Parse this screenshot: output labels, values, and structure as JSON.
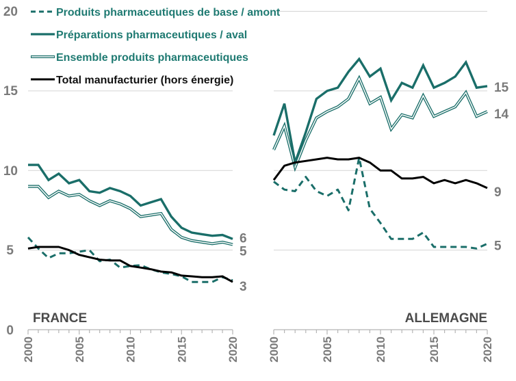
{
  "chart_data": [
    {
      "type": "line",
      "panel": "FRANCE",
      "title": "FRANCE",
      "xlabel": "",
      "ylabel": "",
      "x": [
        2000,
        2001,
        2002,
        2003,
        2004,
        2005,
        2006,
        2007,
        2008,
        2009,
        2010,
        2011,
        2012,
        2013,
        2014,
        2015,
        2016,
        2017,
        2018,
        2019,
        2020
      ],
      "xlim": [
        2000,
        2020
      ],
      "ylim": [
        0,
        20
      ],
      "yticks": [
        "0",
        "5",
        "10",
        "15",
        "20"
      ],
      "xticks": [
        "2000",
        "2005",
        "2010",
        "2015",
        "2020"
      ],
      "grid": true,
      "series": [
        {
          "key": "base",
          "name": "Produits pharmaceutiques de base / amont",
          "values": [
            5.8,
            5.1,
            4.5,
            4.8,
            4.8,
            4.9,
            5.0,
            4.3,
            4.4,
            3.9,
            4.0,
            4.05,
            3.8,
            3.6,
            3.5,
            3.35,
            3.0,
            3.0,
            3.0,
            3.3,
            3.1
          ]
        },
        {
          "key": "aval",
          "name": "Préparations pharmaceutiques / aval",
          "values": [
            10.35,
            10.35,
            9.4,
            9.8,
            9.2,
            9.4,
            8.7,
            8.6,
            8.9,
            8.7,
            8.4,
            7.8,
            8.0,
            8.2,
            7.1,
            6.4,
            6.1,
            6.0,
            5.9,
            5.95,
            5.7
          ]
        },
        {
          "key": "ensemble",
          "name": "Ensemble produits pharmaceutiques",
          "values": [
            9.0,
            9.0,
            8.3,
            8.7,
            8.4,
            8.5,
            8.1,
            7.8,
            8.1,
            7.9,
            7.6,
            7.1,
            7.2,
            7.3,
            6.3,
            5.8,
            5.6,
            5.5,
            5.4,
            5.5,
            5.35
          ]
        },
        {
          "key": "total",
          "name": "Total manufacturier (hors énergie)",
          "values": [
            5.1,
            5.2,
            5.2,
            5.2,
            5.0,
            4.7,
            4.55,
            4.4,
            4.35,
            4.35,
            4.0,
            3.9,
            3.8,
            3.65,
            3.6,
            3.4,
            3.35,
            3.3,
            3.3,
            3.35,
            3.0
          ]
        }
      ],
      "end_labels": [
        {
          "series": "aval",
          "text": "6"
        },
        {
          "series": "ensemble",
          "text": "5"
        },
        {
          "series": "total",
          "text": "3"
        }
      ]
    },
    {
      "type": "line",
      "panel": "ALLEMAGNE",
      "title": "ALLEMAGNE",
      "xlabel": "",
      "ylabel": "",
      "x": [
        2000,
        2001,
        2002,
        2003,
        2004,
        2005,
        2006,
        2007,
        2008,
        2009,
        2010,
        2011,
        2012,
        2013,
        2014,
        2015,
        2016,
        2017,
        2018,
        2019,
        2020
      ],
      "xlim": [
        2000,
        2020
      ],
      "ylim": [
        0,
        20
      ],
      "xticks": [
        "2000",
        "2005",
        "2010",
        "2015",
        "2020"
      ],
      "grid": true,
      "series": [
        {
          "key": "base",
          "name": "Produits pharmaceutiques de base / amont",
          "values": [
            9.3,
            8.8,
            8.7,
            9.6,
            8.7,
            8.4,
            8.8,
            7.5,
            10.8,
            7.6,
            6.7,
            5.7,
            5.7,
            5.7,
            6.1,
            5.2,
            5.2,
            5.2,
            5.2,
            5.1,
            5.4
          ]
        },
        {
          "key": "aval",
          "name": "Préparations pharmaceutiques / aval",
          "values": [
            12.2,
            14.2,
            10.5,
            12.4,
            14.5,
            15.0,
            15.2,
            16.2,
            17.0,
            15.9,
            16.4,
            14.4,
            15.5,
            15.2,
            16.6,
            15.2,
            15.5,
            15.9,
            16.8,
            15.2,
            15.3
          ]
        },
        {
          "key": "ensemble",
          "name": "Ensemble produits pharmaceutiques",
          "values": [
            11.3,
            12.8,
            10.2,
            11.9,
            13.3,
            13.7,
            14.0,
            14.5,
            15.8,
            14.2,
            14.6,
            12.6,
            13.5,
            13.3,
            14.7,
            13.4,
            13.7,
            14.0,
            14.9,
            13.4,
            13.7
          ]
        },
        {
          "key": "total",
          "name": "Total manufacturier (hors énergie)",
          "values": [
            9.4,
            10.3,
            10.5,
            10.6,
            10.7,
            10.8,
            10.7,
            10.7,
            10.8,
            10.5,
            10.0,
            10.0,
            9.5,
            9.5,
            9.6,
            9.2,
            9.4,
            9.2,
            9.4,
            9.2,
            8.9
          ]
        }
      ],
      "end_labels": [
        {
          "series": "aval",
          "text": "15"
        },
        {
          "series": "ensemble",
          "text": "14"
        },
        {
          "series": "total",
          "text": "9"
        },
        {
          "series": "base",
          "text": "5"
        }
      ]
    }
  ],
  "legend": {
    "placement": "top-left",
    "items": [
      {
        "key": "base",
        "label": "Produits pharmaceutiques de base / amont",
        "style": "dashed",
        "color": "#1a6e69"
      },
      {
        "key": "aval",
        "label": "Préparations pharmaceutiques / aval",
        "style": "solid",
        "color": "#1a6e69"
      },
      {
        "key": "ensemble",
        "label": "Ensemble produits pharmaceutiques",
        "style": "double",
        "color": "#1a6e69"
      },
      {
        "key": "total",
        "label": "Total manufacturier (hors énergie)",
        "style": "solid",
        "color": "#000000"
      }
    ]
  },
  "colors": {
    "teal": "#1a6e69",
    "legend_teal_text": "#1f7a72",
    "black": "#000000",
    "tick_grey": "#7a7a7a",
    "panel_label": "#4a4a4a"
  }
}
